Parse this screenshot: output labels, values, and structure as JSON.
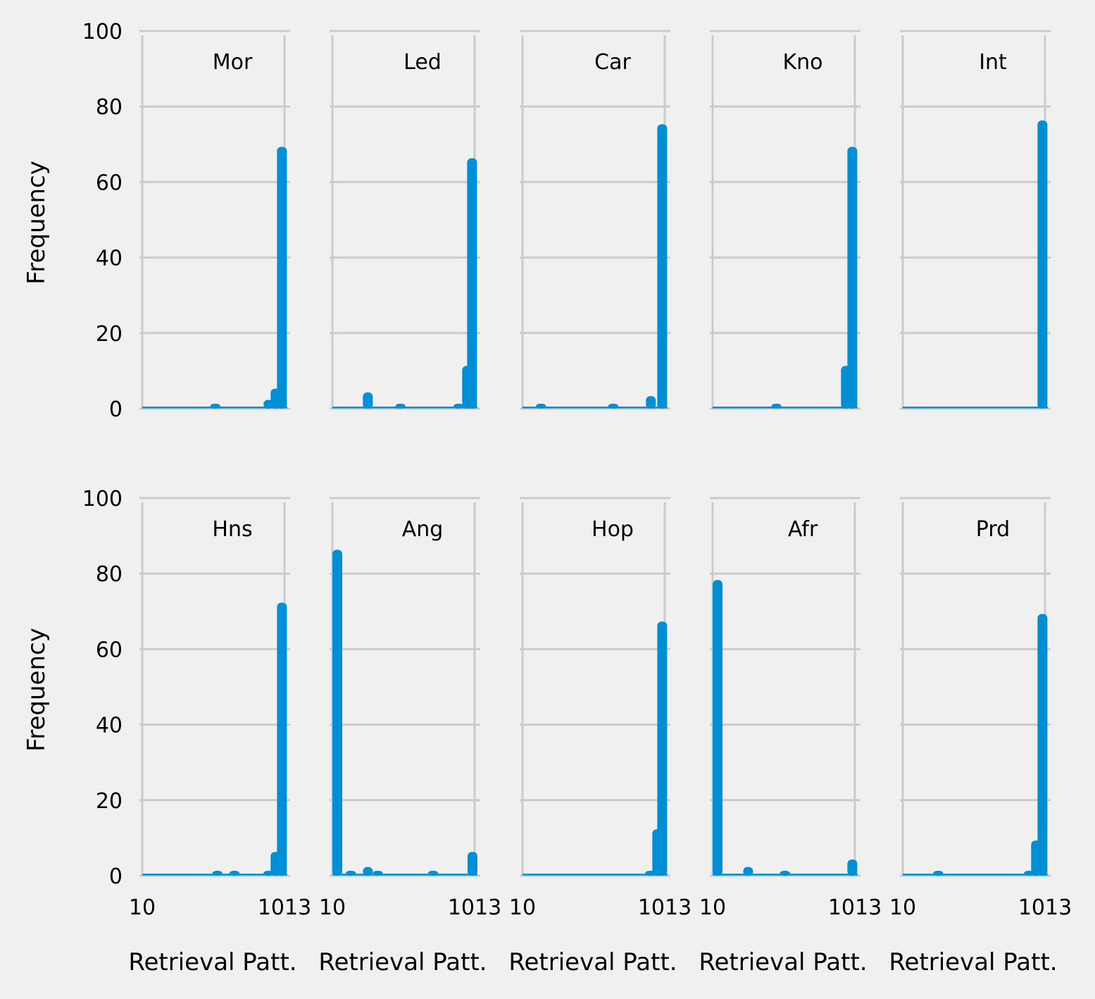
{
  "chart_data": {
    "type": "bar",
    "layout": "small-multiples",
    "bar_color": "#008fd5",
    "background": "#f0f0f0",
    "grid": true,
    "ylabel": "Frequency",
    "xlabel": "Retrieval Patt.",
    "xlim": [
      10,
      1013
    ],
    "ylim": [
      0,
      100
    ],
    "x_ticks": [
      "10",
      "1013"
    ],
    "y_ticks": [
      "0",
      "20",
      "40",
      "60",
      "80",
      "100"
    ],
    "panels": [
      {
        "name": "Mor",
        "bars": [
          {
            "x": 525,
            "value": 1
          },
          {
            "x": 900,
            "value": 2
          },
          {
            "x": 950,
            "value": 5
          },
          {
            "x": 995,
            "value": 69
          }
        ]
      },
      {
        "name": "Led",
        "bars": [
          {
            "x": 260,
            "value": 4
          },
          {
            "x": 490,
            "value": 1
          },
          {
            "x": 900,
            "value": 1
          },
          {
            "x": 960,
            "value": 11
          },
          {
            "x": 995,
            "value": 66
          }
        ]
      },
      {
        "name": "Car",
        "bars": [
          {
            "x": 140,
            "value": 1
          },
          {
            "x": 650,
            "value": 1
          },
          {
            "x": 915,
            "value": 3
          },
          {
            "x": 995,
            "value": 75
          }
        ]
      },
      {
        "name": "Kno",
        "bars": [
          {
            "x": 460,
            "value": 1
          },
          {
            "x": 950,
            "value": 11
          },
          {
            "x": 995,
            "value": 69
          }
        ]
      },
      {
        "name": "Int",
        "bars": [
          {
            "x": 995,
            "value": 76
          }
        ]
      },
      {
        "name": "Hns",
        "bars": [
          {
            "x": 540,
            "value": 1
          },
          {
            "x": 660,
            "value": 1
          },
          {
            "x": 900,
            "value": 1
          },
          {
            "x": 950,
            "value": 6
          },
          {
            "x": 995,
            "value": 72
          }
        ]
      },
      {
        "name": "Ang",
        "bars": [
          {
            "x": 15,
            "value": 86
          },
          {
            "x": 140,
            "value": 1
          },
          {
            "x": 260,
            "value": 2
          },
          {
            "x": 330,
            "value": 1
          },
          {
            "x": 720,
            "value": 1
          },
          {
            "x": 1010,
            "value": 6
          }
        ]
      },
      {
        "name": "Hop",
        "bars": [
          {
            "x": 910,
            "value": 1
          },
          {
            "x": 960,
            "value": 12
          },
          {
            "x": 995,
            "value": 67
          }
        ]
      },
      {
        "name": "Afr",
        "bars": [
          {
            "x": 15,
            "value": 78
          },
          {
            "x": 260,
            "value": 2
          },
          {
            "x": 520,
            "value": 1
          },
          {
            "x": 995,
            "value": 4
          }
        ]
      },
      {
        "name": "Prd",
        "bars": [
          {
            "x": 260,
            "value": 1
          },
          {
            "x": 900,
            "value": 1
          },
          {
            "x": 950,
            "value": 9
          },
          {
            "x": 995,
            "value": 69
          }
        ]
      }
    ]
  }
}
